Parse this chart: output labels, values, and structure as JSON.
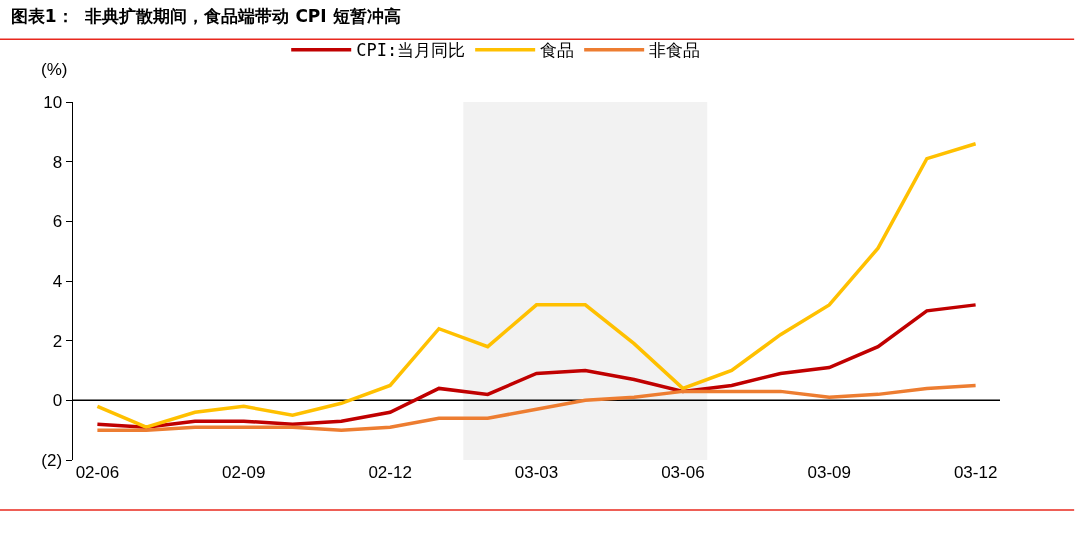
{
  "chart_data": {
    "type": "line",
    "title": "图表1：  非典扩散期间，食品端带动 CPI 短暂冲高",
    "ylabel": "(%)",
    "categories": [
      "02-06",
      null,
      null,
      "02-09",
      null,
      null,
      "02-12",
      null,
      null,
      "03-03",
      null,
      null,
      "03-06",
      null,
      null,
      "03-09",
      null,
      null,
      "03-12"
    ],
    "series": [
      {
        "name": "CPI:当月同比",
        "color": "#c00000",
        "values": [
          -0.8,
          -0.9,
          -0.7,
          -0.7,
          -0.8,
          -0.7,
          -0.4,
          0.4,
          0.2,
          0.9,
          1.0,
          0.7,
          0.3,
          0.5,
          0.9,
          1.1,
          1.8,
          3.0,
          3.2
        ]
      },
      {
        "name": "食品",
        "color": "#ffc000",
        "values": [
          -0.2,
          -0.9,
          -0.4,
          -0.2,
          -0.5,
          -0.1,
          0.5,
          2.4,
          1.8,
          3.2,
          3.2,
          1.9,
          0.4,
          1.0,
          2.2,
          3.2,
          5.1,
          8.1,
          8.6
        ]
      },
      {
        "name": "非食品",
        "color": "#ed7d31",
        "values": [
          -1.0,
          -1.0,
          -0.9,
          -0.9,
          -0.9,
          -1.0,
          -0.9,
          -0.6,
          -0.6,
          -0.3,
          0.0,
          0.1,
          0.3,
          0.3,
          0.3,
          0.1,
          0.2,
          0.4,
          0.5
        ]
      }
    ],
    "ylim": [
      -2,
      10
    ],
    "yticks": [
      {
        "value": -2,
        "label": "(2)"
      },
      0,
      2,
      4,
      6,
      8,
      10
    ],
    "ref_lines": [
      {
        "axis": "y",
        "value": 0,
        "color": "#000000"
      }
    ],
    "grid": false,
    "legend": "top",
    "marker": "none",
    "line_style": "solid"
  }
}
